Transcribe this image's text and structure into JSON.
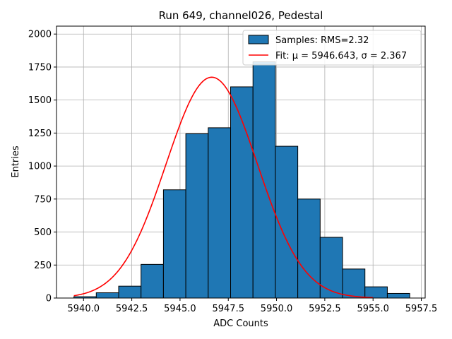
{
  "chart_data": {
    "type": "bar",
    "title": "Run 649, channel026, Pedestal",
    "xlabel": "ADC Counts",
    "ylabel": "Entries",
    "xlim": [
      5938.6,
      5957.7
    ],
    "ylim": [
      0,
      2060
    ],
    "xticks": [
      5940.0,
      5942.5,
      5945.0,
      5947.5,
      5950.0,
      5952.5,
      5955.0,
      5957.5
    ],
    "xtick_labels": [
      "5940.0",
      "5942.5",
      "5945.0",
      "5947.5",
      "5950.0",
      "5952.5",
      "5955.0",
      "5957.5"
    ],
    "yticks": [
      0,
      250,
      500,
      750,
      1000,
      1250,
      1500,
      1750,
      2000
    ],
    "ytick_labels": [
      "0",
      "250",
      "500",
      "750",
      "1000",
      "1250",
      "1500",
      "1750",
      "2000"
    ],
    "grid": true,
    "legend_position": "top-right",
    "bins": [
      {
        "x0": 5939.5,
        "x1": 5940.66,
        "value": 10
      },
      {
        "x0": 5940.66,
        "x1": 5941.82,
        "value": 40
      },
      {
        "x0": 5941.82,
        "x1": 5942.98,
        "value": 90
      },
      {
        "x0": 5942.98,
        "x1": 5944.14,
        "value": 255
      },
      {
        "x0": 5944.14,
        "x1": 5945.3,
        "value": 820
      },
      {
        "x0": 5945.3,
        "x1": 5946.46,
        "value": 1245
      },
      {
        "x0": 5946.46,
        "x1": 5947.62,
        "value": 1290
      },
      {
        "x0": 5947.62,
        "x1": 5948.78,
        "value": 1600
      },
      {
        "x0": 5948.78,
        "x1": 5949.94,
        "value": 1790
      },
      {
        "x0": 5949.94,
        "x1": 5951.1,
        "value": 1150
      },
      {
        "x0": 5951.1,
        "x1": 5952.26,
        "value": 750
      },
      {
        "x0": 5952.26,
        "x1": 5953.42,
        "value": 460
      },
      {
        "x0": 5953.42,
        "x1": 5954.58,
        "value": 220
      },
      {
        "x0": 5954.58,
        "x1": 5955.74,
        "value": 85
      },
      {
        "x0": 5955.74,
        "x1": 5956.9,
        "value": 35
      }
    ],
    "fit": {
      "mu": 5946.643,
      "sigma": 2.367,
      "peak": 1673,
      "x_range": [
        5939.5,
        5955.0
      ]
    },
    "series": [
      {
        "name": "Samples: RMS=2.32",
        "kind": "histogram",
        "color": "#1f77b4"
      },
      {
        "name": "Fit: μ = 5946.643, σ = 2.367",
        "kind": "line",
        "color": "#ff0000"
      }
    ]
  }
}
